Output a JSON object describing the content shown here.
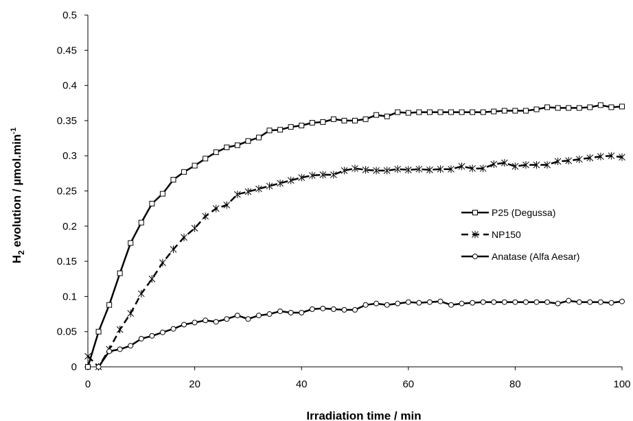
{
  "chart_data": {
    "type": "line",
    "title": "",
    "xlabel": "Irradiation time / min",
    "ylabel_parts": {
      "a": "H",
      "sub": "2",
      "b": " evolution / µmol.min",
      "sup": "-1"
    },
    "xlim": [
      0,
      100
    ],
    "ylim": [
      0,
      0.5
    ],
    "xticks": [
      0,
      20,
      40,
      60,
      80,
      100
    ],
    "yticks": [
      "0",
      "0.05",
      "0.1",
      "0.15",
      "0.2",
      "0.25",
      "0.3",
      "0.35",
      "0.4",
      "0.45",
      "0.5"
    ],
    "grid": false,
    "legend_position": "right",
    "series": [
      {
        "name": "P25 (Degussa)",
        "marker": "square",
        "dash": "solid",
        "x": [
          0,
          2,
          4,
          6,
          8,
          10,
          12,
          14,
          16,
          18,
          20,
          22,
          24,
          26,
          28,
          30,
          32,
          34,
          36,
          38,
          40,
          42,
          44,
          46,
          48,
          50,
          52,
          54,
          56,
          58,
          60,
          62,
          64,
          66,
          68,
          70,
          72,
          74,
          76,
          78,
          80,
          82,
          84,
          86,
          88,
          90,
          92,
          94,
          96,
          98,
          100
        ],
        "y": [
          0,
          0.05,
          0.088,
          0.133,
          0.176,
          0.205,
          0.232,
          0.246,
          0.266,
          0.277,
          0.286,
          0.296,
          0.305,
          0.312,
          0.315,
          0.321,
          0.326,
          0.336,
          0.337,
          0.341,
          0.343,
          0.347,
          0.348,
          0.352,
          0.35,
          0.35,
          0.352,
          0.358,
          0.356,
          0.362,
          0.361,
          0.362,
          0.362,
          0.362,
          0.362,
          0.362,
          0.362,
          0.362,
          0.363,
          0.364,
          0.364,
          0.364,
          0.366,
          0.369,
          0.368,
          0.368,
          0.368,
          0.369,
          0.372,
          0.369,
          0.37
        ]
      },
      {
        "name": "NP150",
        "marker": "star",
        "dash": "dashed",
        "x": [
          0,
          2,
          4,
          6,
          8,
          10,
          12,
          14,
          16,
          18,
          20,
          22,
          24,
          26,
          28,
          30,
          32,
          34,
          36,
          38,
          40,
          42,
          44,
          46,
          48,
          50,
          52,
          54,
          56,
          58,
          60,
          62,
          64,
          66,
          68,
          70,
          72,
          74,
          76,
          78,
          80,
          82,
          84,
          86,
          88,
          90,
          92,
          94,
          96,
          98,
          100
        ],
        "y": [
          0.015,
          0,
          0.025,
          0.053,
          0.076,
          0.104,
          0.125,
          0.148,
          0.167,
          0.184,
          0.197,
          0.214,
          0.225,
          0.23,
          0.245,
          0.249,
          0.253,
          0.257,
          0.261,
          0.265,
          0.269,
          0.272,
          0.273,
          0.273,
          0.279,
          0.282,
          0.28,
          0.279,
          0.279,
          0.281,
          0.28,
          0.281,
          0.28,
          0.281,
          0.281,
          0.285,
          0.282,
          0.282,
          0.288,
          0.29,
          0.285,
          0.287,
          0.287,
          0.287,
          0.292,
          0.293,
          0.295,
          0.297,
          0.299,
          0.3,
          0.298
        ]
      },
      {
        "name": "Anatase (Alfa Aesar)",
        "marker": "circle",
        "dash": "solid",
        "x": [
          2,
          4,
          6,
          8,
          10,
          12,
          14,
          16,
          18,
          20,
          22,
          24,
          26,
          28,
          30,
          32,
          34,
          36,
          38,
          40,
          42,
          44,
          46,
          48,
          50,
          52,
          54,
          56,
          58,
          60,
          62,
          64,
          66,
          68,
          70,
          72,
          74,
          76,
          78,
          80,
          82,
          84,
          86,
          88,
          90,
          92,
          94,
          96,
          98,
          100
        ],
        "y": [
          0,
          0.022,
          0.025,
          0.03,
          0.04,
          0.044,
          0.049,
          0.054,
          0.06,
          0.063,
          0.066,
          0.064,
          0.068,
          0.073,
          0.068,
          0.073,
          0.075,
          0.079,
          0.077,
          0.077,
          0.082,
          0.083,
          0.082,
          0.081,
          0.081,
          0.088,
          0.09,
          0.088,
          0.09,
          0.092,
          0.091,
          0.092,
          0.093,
          0.088,
          0.09,
          0.091,
          0.092,
          0.092,
          0.092,
          0.092,
          0.092,
          0.092,
          0.092,
          0.09,
          0.094,
          0.092,
          0.092,
          0.092,
          0.091,
          0.093
        ]
      }
    ]
  }
}
